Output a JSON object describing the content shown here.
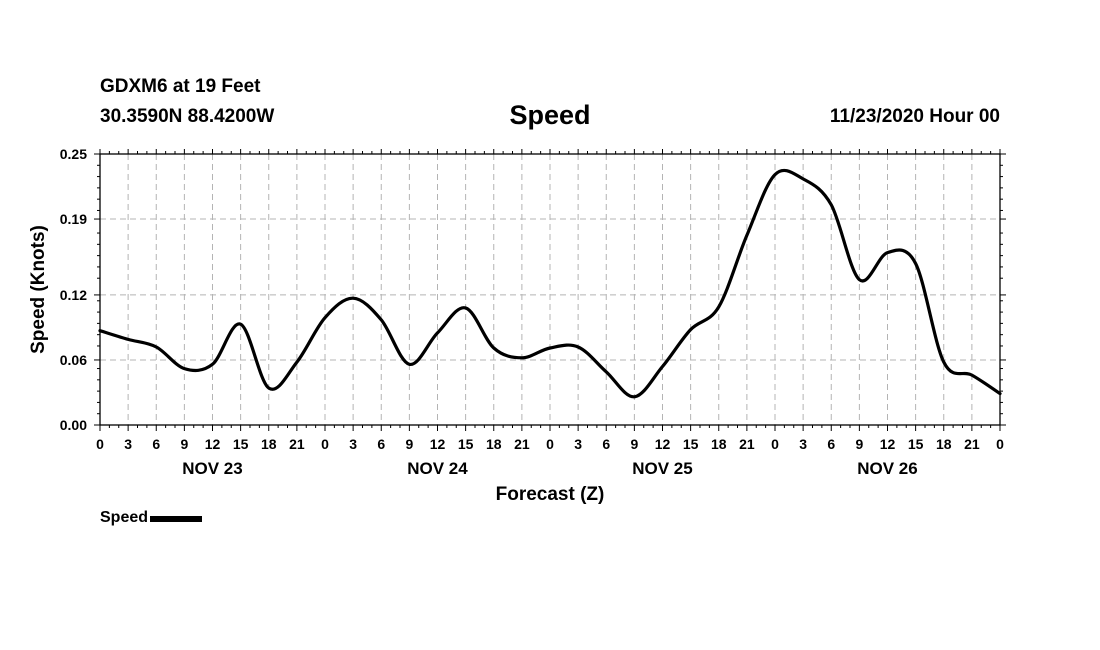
{
  "header": {
    "station": "GDXM6 at 19 Feet",
    "coords": "30.3590N 88.4200W",
    "title": "Speed",
    "timestamp": "11/23/2020 Hour 00"
  },
  "legend": {
    "label": "Speed"
  },
  "chart_data": {
    "type": "line",
    "title": "Speed",
    "xlabel": "Forecast (Z)",
    "ylabel": "Speed (Knots)",
    "x_unit": "hours since 11/23/2020 00Z",
    "xlim": [
      0,
      96
    ],
    "ylim": [
      0,
      0.25
    ],
    "y_ticks": [
      0.0,
      0.06,
      0.12,
      0.19,
      0.25
    ],
    "y_tick_labels": [
      "0.00",
      "0.06",
      "0.12",
      "0.19",
      "0.25"
    ],
    "x_tick_labels": [
      "0",
      "3",
      "6",
      "9",
      "12",
      "15",
      "18",
      "21",
      "0",
      "3",
      "6",
      "9",
      "12",
      "15",
      "18",
      "21",
      "0",
      "3",
      "6",
      "9",
      "12",
      "15",
      "18",
      "21",
      "0",
      "3",
      "6",
      "9",
      "12",
      "15",
      "18",
      "21",
      "0"
    ],
    "day_labels": [
      "NOV 23",
      "NOV 24",
      "NOV 25",
      "NOV 26"
    ],
    "grid": true,
    "legend_position": "bottom-left",
    "colors": {
      "line": "#000000",
      "grid": "#b4b4b4"
    },
    "series": [
      {
        "name": "Speed",
        "x": [
          0,
          3,
          6,
          9,
          12,
          15,
          18,
          21,
          24,
          27,
          30,
          33,
          36,
          39,
          42,
          45,
          48,
          51,
          54,
          57,
          60,
          63,
          66,
          69,
          72,
          75,
          78,
          81,
          84,
          87,
          90,
          93,
          96
        ],
        "values": [
          0.087,
          0.079,
          0.072,
          0.052,
          0.056,
          0.093,
          0.034,
          0.058,
          0.099,
          0.117,
          0.097,
          0.056,
          0.085,
          0.108,
          0.071,
          0.062,
          0.071,
          0.072,
          0.049,
          0.026,
          0.054,
          0.088,
          0.109,
          0.175,
          0.231,
          0.227,
          0.203,
          0.134,
          0.159,
          0.149,
          0.058,
          0.046,
          0.029
        ]
      }
    ]
  }
}
